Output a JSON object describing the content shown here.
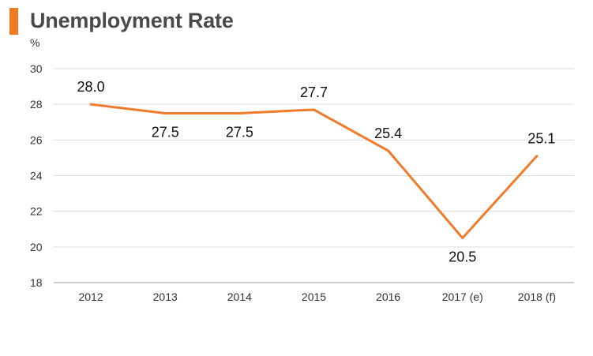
{
  "chart_data": {
    "type": "line",
    "title": "Unemployment Rate",
    "ylabel": "%",
    "xlabel": "",
    "categories": [
      "2012",
      "2013",
      "2014",
      "2015",
      "2016",
      "2017 (e)",
      "2018 (f)"
    ],
    "series": [
      {
        "values": [
          28.0,
          27.5,
          27.5,
          27.7,
          25.4,
          20.5,
          25.1
        ],
        "labels": [
          "28.0",
          "27.5",
          "27.5",
          "27.7",
          "25.4",
          "20.5",
          "25.1"
        ],
        "color": "#f07b2c"
      }
    ],
    "ylim": [
      18,
      30
    ],
    "yticks": [
      "18",
      "20",
      "22",
      "24",
      "26",
      "28",
      "30"
    ],
    "grid": true,
    "legend": "none",
    "accent_color": "#f07b22"
  }
}
